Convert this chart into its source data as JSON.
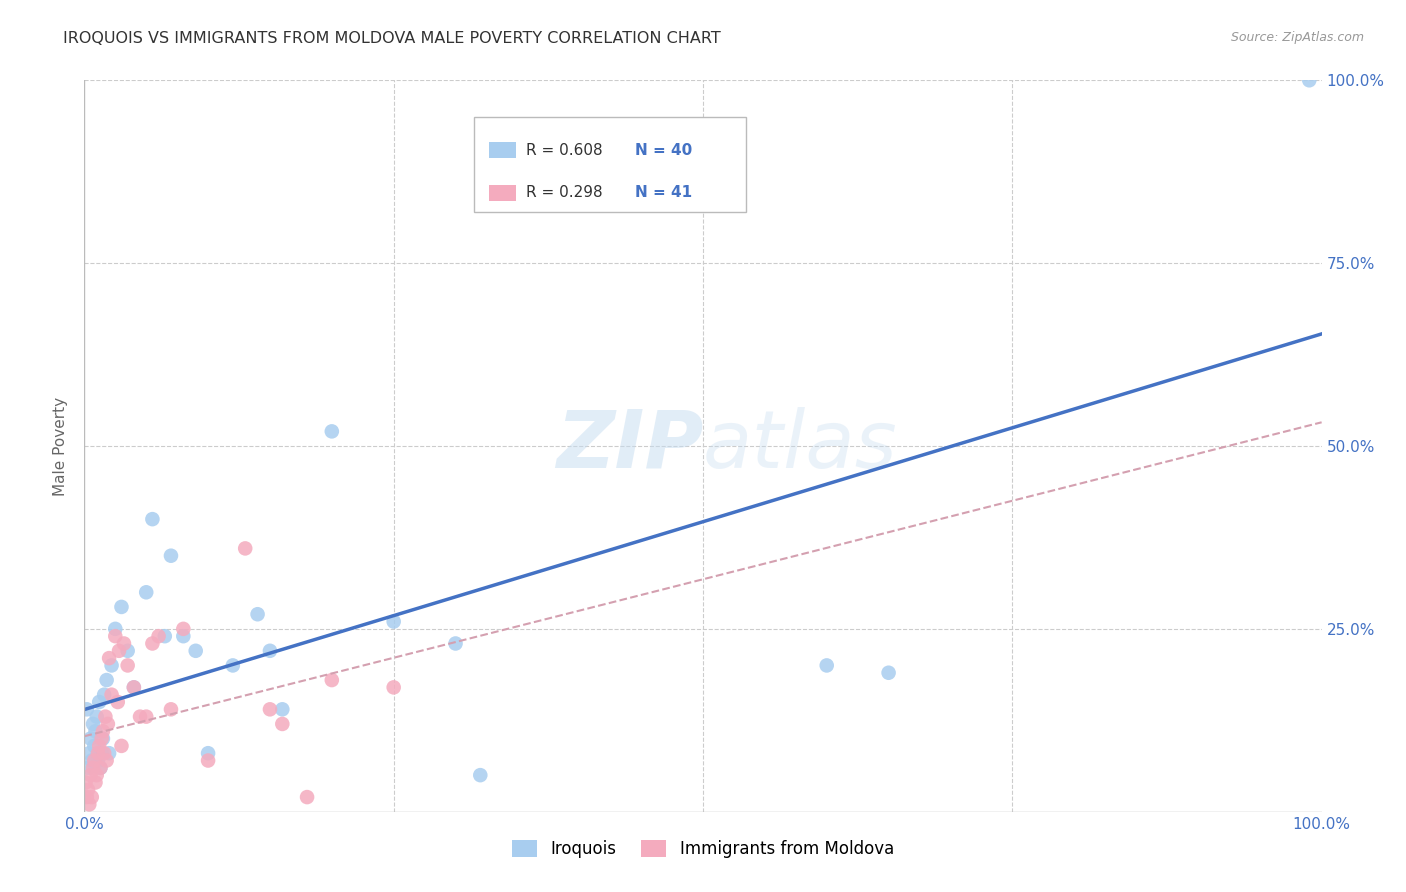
{
  "title": "IROQUOIS VS IMMIGRANTS FROM MOLDOVA MALE POVERTY CORRELATION CHART",
  "source": "Source: ZipAtlas.com",
  "ylabel": "Male Poverty",
  "watermark_zip": "ZIP",
  "watermark_atlas": "atlas",
  "xlim": [
    0,
    1
  ],
  "ylim": [
    0,
    1
  ],
  "color_blue": "#A8CDEF",
  "color_pink": "#F4ABBE",
  "line_blue": "#4472C4",
  "line_pink_dashed": "#D4A0B0",
  "background": "#FFFFFF",
  "grid_color": "#CCCCCC",
  "legend_r1": "R = 0.608",
  "legend_n1": "N = 40",
  "legend_r2": "R = 0.298",
  "legend_n2": "N = 41",
  "legend1_label": "Iroquois",
  "legend2_label": "Immigrants from Moldova",
  "iroquois_x": [
    0.002,
    0.003,
    0.004,
    0.005,
    0.006,
    0.007,
    0.008,
    0.009,
    0.01,
    0.011,
    0.012,
    0.013,
    0.014,
    0.015,
    0.016,
    0.018,
    0.02,
    0.022,
    0.025,
    0.03,
    0.035,
    0.04,
    0.05,
    0.055,
    0.065,
    0.07,
    0.08,
    0.09,
    0.1,
    0.12,
    0.14,
    0.15,
    0.16,
    0.2,
    0.25,
    0.3,
    0.32,
    0.6,
    0.65,
    0.99
  ],
  "iroquois_y": [
    0.14,
    0.06,
    0.08,
    0.1,
    0.07,
    0.12,
    0.09,
    0.11,
    0.13,
    0.07,
    0.15,
    0.06,
    0.08,
    0.1,
    0.16,
    0.18,
    0.08,
    0.2,
    0.25,
    0.28,
    0.22,
    0.17,
    0.3,
    0.4,
    0.24,
    0.35,
    0.24,
    0.22,
    0.08,
    0.2,
    0.27,
    0.22,
    0.14,
    0.52,
    0.26,
    0.23,
    0.05,
    0.2,
    0.19,
    1.0
  ],
  "moldova_x": [
    0.001,
    0.002,
    0.003,
    0.004,
    0.005,
    0.006,
    0.007,
    0.008,
    0.009,
    0.01,
    0.011,
    0.012,
    0.013,
    0.014,
    0.015,
    0.016,
    0.017,
    0.018,
    0.019,
    0.02,
    0.022,
    0.025,
    0.027,
    0.028,
    0.03,
    0.032,
    0.035,
    0.04,
    0.045,
    0.05,
    0.055,
    0.06,
    0.07,
    0.08,
    0.1,
    0.13,
    0.15,
    0.16,
    0.18,
    0.2,
    0.25
  ],
  "moldova_y": [
    0.04,
    0.02,
    0.03,
    0.01,
    0.05,
    0.02,
    0.06,
    0.07,
    0.04,
    0.05,
    0.08,
    0.09,
    0.06,
    0.1,
    0.11,
    0.08,
    0.13,
    0.07,
    0.12,
    0.21,
    0.16,
    0.24,
    0.15,
    0.22,
    0.09,
    0.23,
    0.2,
    0.17,
    0.13,
    0.13,
    0.23,
    0.24,
    0.14,
    0.25,
    0.07,
    0.36,
    0.14,
    0.12,
    0.02,
    0.18,
    0.17
  ]
}
